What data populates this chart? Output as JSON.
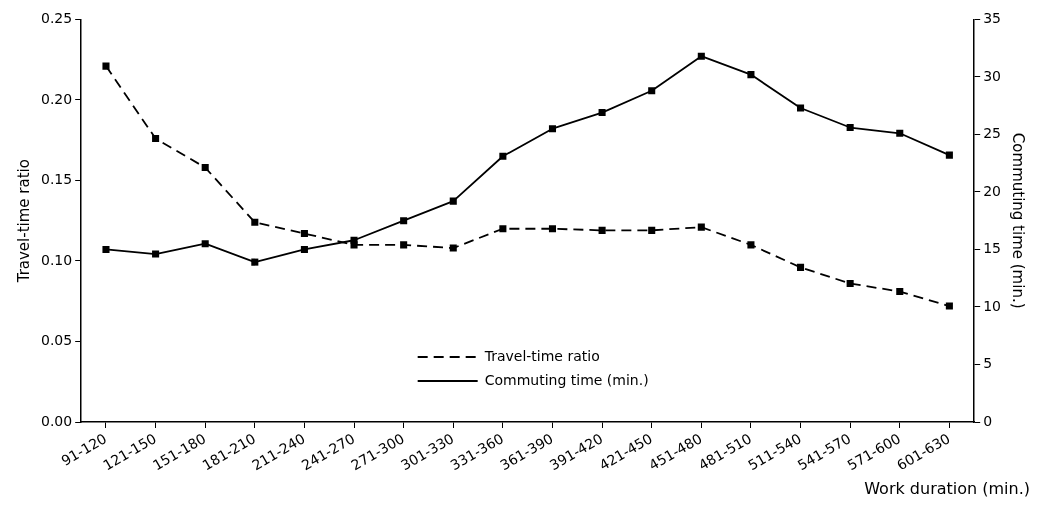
{
  "chart_data": {
    "type": "line",
    "xlabel": "Work duration (min.)",
    "ylabel": "Travel-time ratio",
    "y2label": "Commuting time (min.)",
    "categories": [
      "91-120",
      "121-150",
      "151-180",
      "181-210",
      "211-240",
      "241-270",
      "271-300",
      "301-330",
      "331-360",
      "361-390",
      "391-420",
      "421-450",
      "451-480",
      "481-510",
      "511-540",
      "541-570",
      "571-600",
      "601-630"
    ],
    "series": [
      {
        "name": "Travel-time ratio",
        "color": "#000000",
        "line_style": "dashed",
        "values": [
          0.221,
          0.176,
          0.158,
          0.124,
          0.117,
          0.11,
          0.11,
          0.108,
          0.12,
          0.12,
          0.119,
          0.119,
          0.121,
          0.11,
          0.096,
          0.086,
          0.081,
          0.072
        ]
      },
      {
        "name": "Commuting time (min.)",
        "color": "#000000",
        "line_style": "solid",
        "axis": "y2",
        "values": [
          15.0,
          14.6,
          15.5,
          13.9,
          15.0,
          15.8,
          17.5,
          19.2,
          23.1,
          25.5,
          26.9,
          28.8,
          31.8,
          30.2,
          27.3,
          25.6,
          25.1,
          23.2
        ]
      }
    ],
    "ylim": [
      0,
      0.25
    ],
    "yticks": [
      {
        "value": 0,
        "label": "0.00"
      },
      {
        "value": 0.05,
        "label": "0.05"
      },
      {
        "value": 0.1,
        "label": "0.10"
      },
      {
        "value": 0.15,
        "label": "0.15"
      },
      {
        "value": 0.2,
        "label": "0.20"
      },
      {
        "value": 0.25,
        "label": "0.25"
      }
    ],
    "y2lim": [
      0,
      35
    ],
    "y2ticks": [
      0,
      5,
      10,
      15,
      20,
      25,
      30,
      35
    ],
    "marker": "square",
    "grid": false,
    "legend": "bottom"
  }
}
